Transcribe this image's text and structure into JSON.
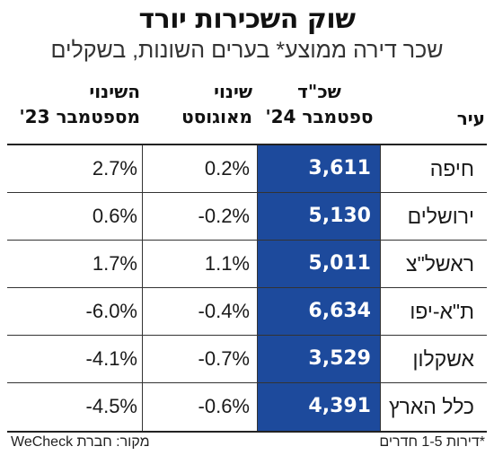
{
  "title": "שוק השכירות יורד",
  "subtitle": "שכר דירה ממוצע* בערים השונות, בשקלים",
  "headers": {
    "city": "עיר",
    "rent_line1": "שכ\"ד",
    "rent_line2": "ספטמבר 24'",
    "aug_line1": "שינוי",
    "aug_line2": "מאוגוסט",
    "sep_line1": "השינוי",
    "sep_line2": "מספטמבר 23'"
  },
  "rows": [
    {
      "city": "חיפה",
      "rent": "3,611",
      "aug": "0.2%",
      "yoy": "2.7%"
    },
    {
      "city": "ירושלים",
      "rent": "5,130",
      "aug": "-0.2%",
      "yoy": "0.6%"
    },
    {
      "city": "ראשל\"צ",
      "rent": "5,011",
      "aug": "1.1%",
      "yoy": "1.7%"
    },
    {
      "city": "ת\"א-יפו",
      "rent": "6,634",
      "aug": "-0.4%",
      "yoy": "-6.0%"
    },
    {
      "city": "אשקלון",
      "rent": "3,529",
      "aug": "-0.7%",
      "yoy": "-4.1%"
    },
    {
      "city": "כלל הארץ",
      "rent": "4,391",
      "aug": "-0.6%",
      "yoy": "-4.5%"
    }
  ],
  "footnote": "*דירות 1-5 חדרים",
  "source": "מקור: חברת WeCheck",
  "colors": {
    "rent_column": "#1d4a9c"
  }
}
